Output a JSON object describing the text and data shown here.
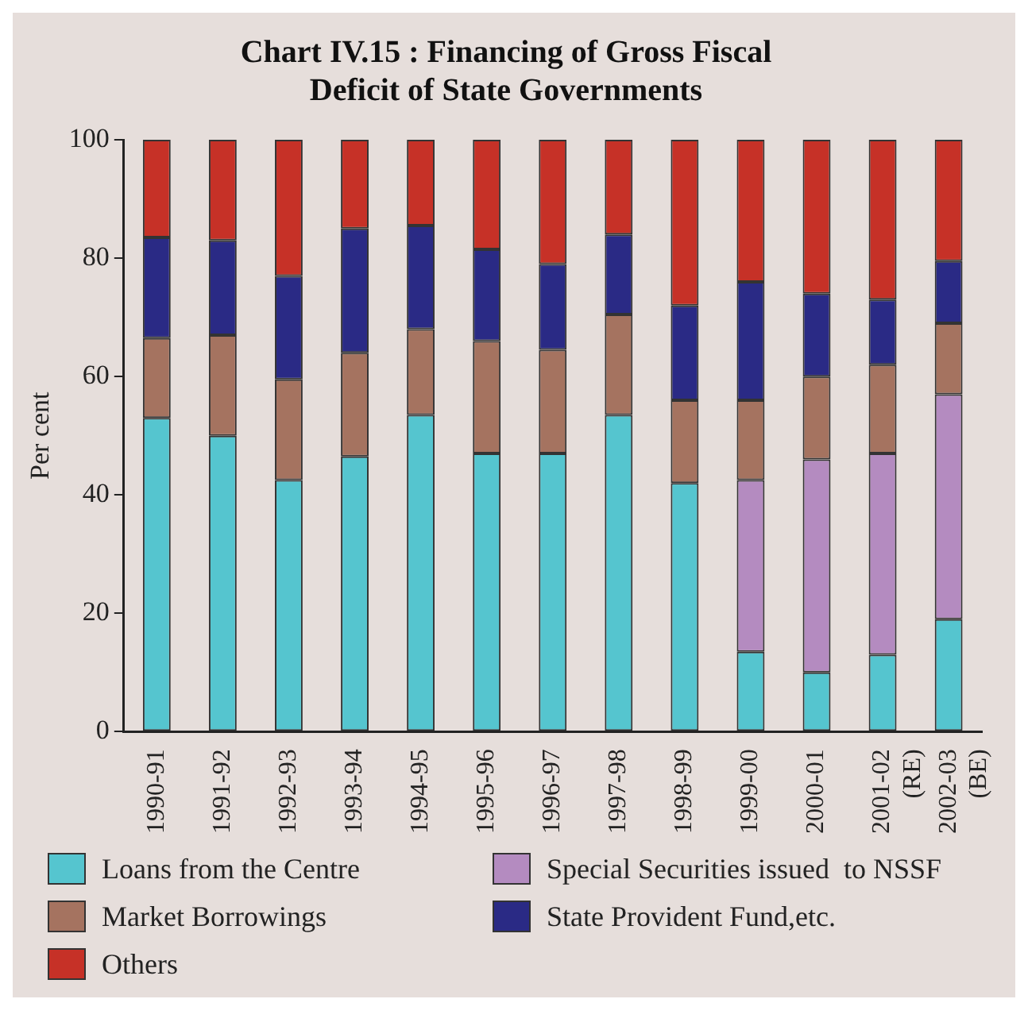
{
  "chart_data": {
    "type": "bar",
    "title": "Chart IV.15 : Financing of Gross Fiscal Deficit of State Governments",
    "ylabel": "Per cent",
    "categories": [
      "1990-91",
      "1991-92",
      "1992-93",
      "1993-94",
      "1994-95",
      "1995-96",
      "1996-97",
      "1997-98",
      "1998-99",
      "1999-00",
      "2000-01",
      "2001-02 (RE)",
      "2002-03 (BE)"
    ],
    "series": [
      {
        "name": "Loans from the Centre",
        "color": "#55c5cf",
        "values": [
          53,
          50,
          42.5,
          46.5,
          53.5,
          47,
          47,
          53.5,
          42,
          13.5,
          10,
          13,
          19
        ]
      },
      {
        "name": "Special Securities issued  to NSSF",
        "color": "#b48bc0",
        "values": [
          null,
          null,
          null,
          null,
          null,
          null,
          null,
          null,
          null,
          29,
          36,
          34,
          38
        ]
      },
      {
        "name": "Market Borrowings",
        "color": "#a57360",
        "values": [
          13.5,
          17,
          17,
          17.5,
          14.5,
          19,
          17.5,
          17,
          14,
          13.5,
          14,
          15,
          12
        ]
      },
      {
        "name": "State Provident Fund,etc.",
        "color": "#2a2a85",
        "values": [
          17,
          16,
          17.5,
          21,
          17.5,
          15.5,
          14.5,
          13.5,
          16,
          20,
          14,
          11,
          10.5
        ]
      },
      {
        "name": "Others",
        "color": "#c63127",
        "values": [
          16.5,
          17,
          23,
          15,
          14.5,
          18.5,
          21,
          16,
          28,
          24,
          26,
          27,
          20.5
        ]
      }
    ],
    "stacked": true,
    "ylim": [
      0,
      100
    ],
    "yticks": [
      0,
      20,
      40,
      60,
      80,
      100
    ],
    "grid": false,
    "legend": "bottom"
  }
}
